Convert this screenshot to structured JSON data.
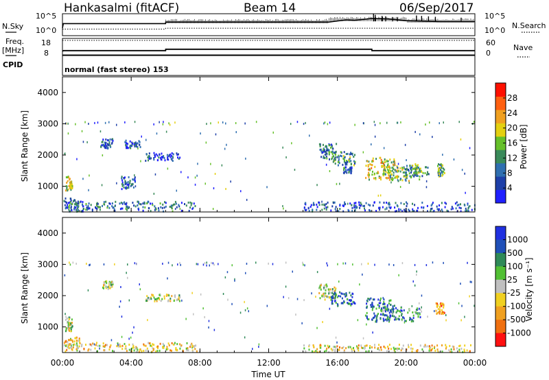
{
  "header": {
    "station": "Hankasalmi (fitACF)",
    "beam": "Beam 14",
    "date": "06/Sep/2017"
  },
  "labels": {
    "nsky": "N.Sky",
    "nsearch": "N.Search",
    "freq_line1": "Freq.",
    "freq_line2": "[MHz]",
    "nave": "Nave",
    "cpid": "CPID",
    "cpid_value": "normal (fast stereo) 153",
    "noise_left_top": "10^5",
    "noise_left_bottom": "10^0",
    "noise_right_top": "10^5",
    "noise_right_bottom": "10^0",
    "freq_left_top": "18",
    "freq_left_bottom": "8",
    "nave_right_top": "60",
    "nave_right_bottom": "0",
    "xlabel": "Time UT",
    "ylabel": "Slant Range [km]",
    "power_label": "Power [dB]",
    "velocity_label": "Velocity [m s⁻¹]"
  },
  "chart_data": [
    {
      "type": "line",
      "panel": "noise",
      "x_range": [
        0,
        24
      ],
      "series": [
        {
          "name": "N.Sky",
          "points": [
            [
              0,
              0.35
            ],
            [
              0.05,
              0.55
            ],
            [
              6,
              0.55
            ],
            [
              6.01,
              0.62
            ],
            [
              15.5,
              0.62
            ],
            [
              16.5,
              0.72
            ],
            [
              17,
              0.7
            ],
            [
              18,
              0.78
            ],
            [
              19,
              0.76
            ],
            [
              20,
              0.68
            ],
            [
              22,
              0.64
            ],
            [
              24,
              0.64
            ]
          ]
        },
        {
          "name": "N.Search",
          "points": [
            [
              0,
              0.3
            ],
            [
              6,
              0.3
            ],
            [
              6.01,
              0.34
            ],
            [
              24,
              0.34
            ]
          ]
        }
      ],
      "spikes": [
        [
          18.1,
          1.0
        ],
        [
          18.2,
          0.95
        ],
        [
          18.6,
          0.9
        ],
        [
          18.8,
          0.88
        ],
        [
          19.2,
          0.85
        ],
        [
          19.5,
          0.83
        ],
        [
          20.6,
          0.92
        ],
        [
          20.9,
          0.9
        ],
        [
          21.3,
          0.88
        ],
        [
          21.7,
          0.86
        ],
        [
          23.2,
          0.82
        ]
      ]
    },
    {
      "type": "line",
      "panel": "freq-nave",
      "x_range": [
        0,
        24
      ],
      "series": [
        {
          "name": "Freq",
          "points": [
            [
              0,
              10.2
            ],
            [
              0.05,
              10.6
            ],
            [
              6,
              10.6
            ],
            [
              6.01,
              11.4
            ],
            [
              18,
              11.4
            ],
            [
              18.01,
              10.6
            ],
            [
              24,
              10.6
            ]
          ]
        },
        {
          "name": "Nave",
          "points": [
            [
              0,
              16.8
            ],
            [
              24,
              16.8
            ]
          ]
        }
      ]
    },
    {
      "type": "heatmap",
      "panel": "power",
      "x_range": [
        0,
        24
      ],
      "ylim": [
        180,
        4500
      ],
      "yticks": [
        1000,
        2000,
        3000,
        4000
      ],
      "colorbar": {
        "min": 0,
        "max": 32,
        "ticks": [
          4,
          8,
          12,
          16,
          20,
          24,
          28
        ],
        "colors": [
          "#2020ff",
          "#1e3fa8",
          "#2f6fb0",
          "#3a8a5a",
          "#66c02a",
          "#e4d010",
          "#f0a020",
          "#ff6010",
          "#ff1000"
        ]
      },
      "patches": [
        {
          "t": [
            0.15,
            0.55
          ],
          "r": [
            850,
            1300
          ],
          "level": 0.55
        },
        {
          "t": [
            0.05,
            0.9
          ],
          "r": [
            180,
            600
          ],
          "level": 0.3
        },
        {
          "t": [
            0.5,
            7.8
          ],
          "r": [
            180,
            500
          ],
          "level": 0.25
        },
        {
          "t": [
            2.2,
            2.9
          ],
          "r": [
            2200,
            2500
          ],
          "level": 0.2
        },
        {
          "t": [
            3.6,
            4.5
          ],
          "r": [
            2200,
            2450
          ],
          "level": 0.2
        },
        {
          "t": [
            4.8,
            6.8
          ],
          "r": [
            1800,
            2050
          ],
          "level": 0.2
        },
        {
          "t": [
            3.4,
            4.2
          ],
          "r": [
            900,
            1300
          ],
          "level": 0.2
        },
        {
          "t": [
            14.9,
            15.9
          ],
          "r": [
            1850,
            2350
          ],
          "level": 0.3
        },
        {
          "t": [
            15.6,
            17
          ],
          "r": [
            1650,
            2100
          ],
          "level": 0.35
        },
        {
          "t": [
            16.3,
            16.8
          ],
          "r": [
            1400,
            1600
          ],
          "level": 0.25
        },
        {
          "t": [
            17.6,
            19.3
          ],
          "r": [
            1200,
            1900
          ],
          "level": 0.6
        },
        {
          "t": [
            18.6,
            20.8
          ],
          "r": [
            1150,
            1700
          ],
          "level": 0.5
        },
        {
          "t": [
            19.8,
            21.3
          ],
          "r": [
            1300,
            1600
          ],
          "level": 0.35
        },
        {
          "t": [
            21.8,
            22.2
          ],
          "r": [
            1300,
            1700
          ],
          "level": 0.4
        },
        {
          "t": [
            14,
            24
          ],
          "r": [
            180,
            480
          ],
          "level": 0.2
        }
      ]
    },
    {
      "type": "heatmap",
      "panel": "velocity",
      "x_range": [
        0,
        24
      ],
      "ylim": [
        180,
        4500
      ],
      "yticks": [
        1000,
        2000,
        3000,
        4000
      ],
      "colorbar": {
        "ticks": [
          "1000",
          "500",
          "100",
          "25",
          "-25",
          "-100",
          "-500",
          "-1000"
        ],
        "colors": [
          "#2030e0",
          "#2050b8",
          "#2f8a58",
          "#52c034",
          "#c0c0c0",
          "#f0d020",
          "#f0a020",
          "#f07010",
          "#ff1010"
        ]
      },
      "patches": [
        {
          "t": [
            0.15,
            0.55
          ],
          "r": [
            850,
            1300
          ],
          "level": 0.5
        },
        {
          "t": [
            0.05,
            1.0
          ],
          "r": [
            180,
            650
          ],
          "level": 0.6
        },
        {
          "t": [
            1,
            7.8
          ],
          "r": [
            180,
            480
          ],
          "level": 0.6
        },
        {
          "t": [
            2.3,
            2.9
          ],
          "r": [
            2200,
            2450
          ],
          "level": 0.5
        },
        {
          "t": [
            4.8,
            6.8
          ],
          "r": [
            1800,
            2050
          ],
          "level": 0.5
        },
        {
          "t": [
            14.9,
            15.9
          ],
          "r": [
            1850,
            2350
          ],
          "level": 0.5
        },
        {
          "t": [
            15.6,
            17
          ],
          "r": [
            1650,
            2100
          ],
          "level": 0.2
        },
        {
          "t": [
            17.6,
            19.3
          ],
          "r": [
            1150,
            1900
          ],
          "level": 0.22
        },
        {
          "t": [
            18.6,
            20.8
          ],
          "r": [
            1150,
            1650
          ],
          "level": 0.25
        },
        {
          "t": [
            21.7,
            22.2
          ],
          "r": [
            1400,
            1750
          ],
          "level": 0.78
        },
        {
          "t": [
            14,
            24
          ],
          "r": [
            180,
            420
          ],
          "level": 0.6
        }
      ]
    }
  ],
  "x_axis": {
    "ticks": [
      "00:00",
      "04:00",
      "08:00",
      "12:00",
      "16:00",
      "20:00",
      "00:00"
    ]
  }
}
